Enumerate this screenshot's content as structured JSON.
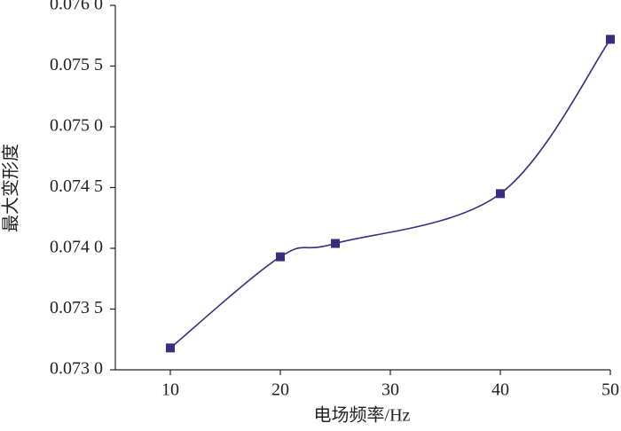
{
  "chart_data": {
    "type": "line",
    "x_label": "电场频率/Hz",
    "y_label": "最大变形度",
    "x": [
      10,
      20,
      25,
      40,
      50
    ],
    "series": [
      {
        "name": "最大变形度",
        "color": "#3b2c82",
        "values": [
          0.07318,
          0.07393,
          0.07404,
          0.07445,
          0.07572
        ]
      }
    ],
    "xlim": [
      5,
      50
    ],
    "xticks": [
      10,
      20,
      30,
      40,
      50
    ],
    "ylim": [
      0.073,
      0.076
    ],
    "yticks": [
      {
        "value": 0.073,
        "label": "0.073 0"
      },
      {
        "value": 0.0735,
        "label": "0.073 5"
      },
      {
        "value": 0.074,
        "label": "0.074 0"
      },
      {
        "value": 0.0745,
        "label": "0.074 5"
      },
      {
        "value": 0.075,
        "label": "0.075 0"
      },
      {
        "value": 0.0755,
        "label": "0.075 5"
      },
      {
        "value": 0.076,
        "label": "0.076 0"
      }
    ],
    "grid": false,
    "smooth": true
  }
}
